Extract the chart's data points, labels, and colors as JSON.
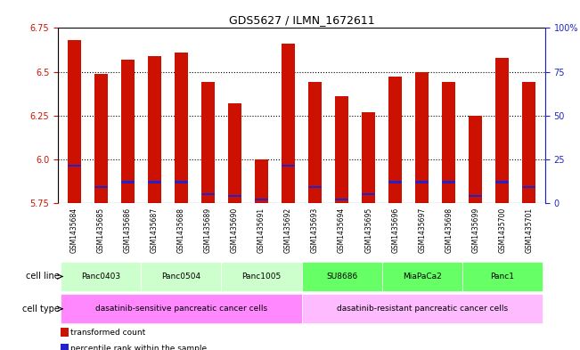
{
  "title": "GDS5627 / ILMN_1672611",
  "samples": [
    "GSM1435684",
    "GSM1435685",
    "GSM1435686",
    "GSM1435687",
    "GSM1435688",
    "GSM1435689",
    "GSM1435690",
    "GSM1435691",
    "GSM1435692",
    "GSM1435693",
    "GSM1435694",
    "GSM1435695",
    "GSM1435696",
    "GSM1435697",
    "GSM1435698",
    "GSM1435699",
    "GSM1435700",
    "GSM1435701"
  ],
  "red_values": [
    6.68,
    6.49,
    6.57,
    6.59,
    6.61,
    6.44,
    6.32,
    6.0,
    6.66,
    6.44,
    6.36,
    6.27,
    6.47,
    6.5,
    6.44,
    6.25,
    6.58,
    6.44
  ],
  "blue_values": [
    5.965,
    5.84,
    5.87,
    5.87,
    5.87,
    5.8,
    5.79,
    5.77,
    5.965,
    5.84,
    5.77,
    5.8,
    5.87,
    5.87,
    5.87,
    5.79,
    5.87,
    5.84
  ],
  "ymin": 5.75,
  "ymax": 6.75,
  "yticks_left": [
    5.75,
    6.0,
    6.25,
    6.5,
    6.75
  ],
  "yticks_right": [
    0,
    25,
    50,
    75,
    100
  ],
  "cell_lines": [
    {
      "label": "Panc0403",
      "start": 0,
      "end": 3,
      "color": "#ccffcc"
    },
    {
      "label": "Panc0504",
      "start": 3,
      "end": 6,
      "color": "#ccffcc"
    },
    {
      "label": "Panc1005",
      "start": 6,
      "end": 9,
      "color": "#ccffcc"
    },
    {
      "label": "SU8686",
      "start": 9,
      "end": 12,
      "color": "#66ff66"
    },
    {
      "label": "MiaPaCa2",
      "start": 12,
      "end": 15,
      "color": "#66ff66"
    },
    {
      "label": "Panc1",
      "start": 15,
      "end": 18,
      "color": "#66ff66"
    }
  ],
  "cell_types": [
    {
      "label": "dasatinib-sensitive pancreatic cancer cells",
      "start": 0,
      "end": 9,
      "color": "#ff88ff"
    },
    {
      "label": "dasatinib-resistant pancreatic cancer cells",
      "start": 9,
      "end": 18,
      "color": "#ffbbff"
    }
  ],
  "bar_color": "#cc1100",
  "marker_color": "#2222cc",
  "bar_width": 0.5,
  "background_color": "#ffffff",
  "grid_color": "#000000",
  "axis_color_left": "#cc1100",
  "axis_color_right": "#2222cc"
}
